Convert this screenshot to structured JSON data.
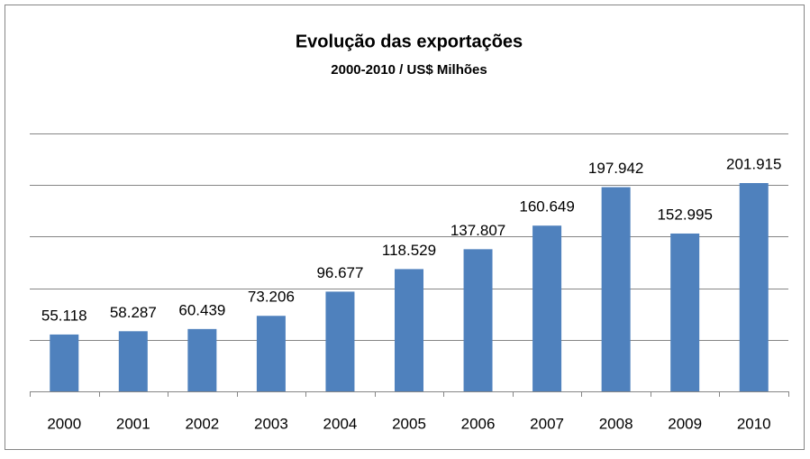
{
  "chart_data": {
    "type": "bar",
    "title": "Evolução das exportações",
    "subtitle": "2000-2010  /  US$ Milhões",
    "categories": [
      "2000",
      "2001",
      "2002",
      "2003",
      "2004",
      "2005",
      "2006",
      "2007",
      "2008",
      "2009",
      "2010"
    ],
    "values": [
      55.118,
      58.287,
      60.439,
      73.206,
      96.677,
      118.529,
      137.807,
      160.649,
      197.942,
      152.995,
      201.915
    ],
    "color": "#4f81bd",
    "ylim": [
      0,
      250
    ],
    "yticks": [
      0,
      50,
      100,
      150,
      200,
      250
    ],
    "grid": true
  }
}
